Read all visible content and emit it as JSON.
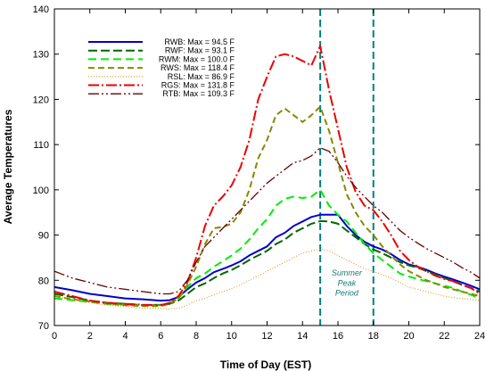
{
  "chart_data": {
    "type": "line",
    "xlabel": "Time of Day (EST)",
    "ylabel": "Average Temperatures",
    "xlim": [
      0,
      24
    ],
    "ylim": [
      70,
      140
    ],
    "xticks": [
      0,
      2,
      4,
      6,
      8,
      10,
      12,
      14,
      16,
      18,
      20,
      22,
      24
    ],
    "yticks": [
      70,
      80,
      90,
      100,
      110,
      120,
      130,
      140
    ],
    "grid": false,
    "legend_position": "top-left",
    "vlines": [
      15,
      18
    ],
    "vline_color": "#008080",
    "annotation": {
      "lines": [
        "Summer",
        "Peak",
        "Period"
      ],
      "x": 16.5,
      "y": [
        81,
        78.8,
        76.6
      ]
    },
    "series": [
      {
        "name": "RWB: Max = 94.5 F",
        "color": "#0000cc",
        "dash": "none",
        "width": 2,
        "x": [
          0,
          1,
          2,
          3,
          4,
          5,
          6,
          6.5,
          7,
          7.5,
          8,
          8.5,
          9,
          9.5,
          10,
          10.5,
          11,
          11.5,
          12,
          12.5,
          13,
          13.5,
          14,
          14.5,
          15,
          15.5,
          16,
          16.5,
          17,
          17.5,
          18,
          18.5,
          19,
          19.5,
          20,
          20.5,
          21,
          21.5,
          22,
          22.5,
          23,
          23.5,
          24
        ],
        "y": [
          78.5,
          77.8,
          77,
          76.5,
          76,
          75.8,
          75.5,
          75.6,
          76.3,
          78,
          79.5,
          80.5,
          81.8,
          82.5,
          83.3,
          84.2,
          85.5,
          86.5,
          87.5,
          89.5,
          90.5,
          92,
          93,
          94,
          94.5,
          94.5,
          94.5,
          92,
          90,
          88.5,
          87.5,
          86.8,
          85.8,
          84.5,
          83.5,
          83,
          82.3,
          81.5,
          80.8,
          80.2,
          79.5,
          78.8,
          78
        ]
      },
      {
        "name": "RWF: Max = 93.1 F",
        "color": "#006600",
        "dash": "10,4",
        "width": 2,
        "x": [
          0,
          1,
          2,
          3,
          4,
          5,
          6,
          6.5,
          7,
          7.5,
          8,
          8.5,
          9,
          9.5,
          10,
          10.5,
          11,
          11.5,
          12,
          12.5,
          13,
          13.5,
          14,
          14.5,
          15,
          15.5,
          16,
          16.5,
          17,
          17.5,
          18,
          18.5,
          19,
          19.5,
          20,
          20.5,
          21,
          21.5,
          22,
          22.5,
          23,
          23.5,
          24
        ],
        "y": [
          77,
          76.3,
          75.5,
          75,
          74.8,
          74.5,
          74.6,
          74.8,
          75.5,
          77,
          78.5,
          79.3,
          80.5,
          81.5,
          82.3,
          83.3,
          84.5,
          85.5,
          86.5,
          88,
          89,
          90.5,
          91.5,
          92.5,
          93.1,
          93,
          92.5,
          91,
          89.5,
          88,
          86.8,
          86,
          85,
          84,
          83.3,
          82.8,
          82,
          81.3,
          80.5,
          79.8,
          79,
          78.3,
          77.5
        ]
      },
      {
        "name": "RWM: Max = 100.0 F",
        "color": "#00ee00",
        "dash": "9,5",
        "width": 2,
        "x": [
          0,
          1,
          2,
          3,
          4,
          5,
          6,
          6.5,
          7,
          7.5,
          8,
          8.5,
          9,
          9.5,
          10,
          10.5,
          11,
          11.5,
          12,
          12.5,
          13,
          13.5,
          14,
          14.5,
          15,
          15.5,
          16,
          16.5,
          17,
          17.5,
          18,
          18.5,
          19,
          19.5,
          20,
          20.5,
          21,
          21.5,
          22,
          22.5,
          23,
          23.5,
          24
        ],
        "y": [
          76,
          75.6,
          75.2,
          74.8,
          74.6,
          74.4,
          74.5,
          75,
          76,
          78.5,
          80.5,
          81.5,
          83,
          84.2,
          85.5,
          87,
          89,
          91.5,
          93.5,
          96.5,
          98,
          98.5,
          98.2,
          98.5,
          100,
          96.5,
          94.5,
          93,
          90.5,
          88,
          86,
          84.5,
          83,
          81.5,
          80.8,
          80.3,
          79.8,
          79.3,
          78.8,
          78.3,
          77.5,
          76.8,
          76
        ]
      },
      {
        "name": "RWS: Max = 118.4 F",
        "color": "#888800",
        "dash": "7,4",
        "width": 2,
        "x": [
          0,
          1,
          2,
          3,
          4,
          5,
          6,
          6.5,
          7,
          7.5,
          8,
          8.5,
          9,
          9.5,
          10,
          10.5,
          11,
          11.5,
          12,
          12.5,
          13,
          13.5,
          14,
          14.5,
          15,
          15.5,
          16,
          16.5,
          17,
          17.5,
          18,
          18.5,
          19,
          19.5,
          20,
          20.5,
          21,
          21.5,
          22,
          22.5,
          23,
          23.5,
          24
        ],
        "y": [
          76.5,
          75.8,
          75.3,
          74.8,
          74.5,
          74.3,
          74.3,
          74.8,
          76,
          79,
          83,
          88,
          91.5,
          91.8,
          92.5,
          95,
          100,
          107,
          111,
          116.5,
          118,
          116.5,
          115,
          116.5,
          118.4,
          113,
          106,
          99,
          95,
          92,
          90,
          87.5,
          85.5,
          83.5,
          82,
          81,
          80,
          79.3,
          78.5,
          78,
          77.5,
          77,
          76.5
        ]
      },
      {
        "name": "RSL: Max = 86.9 F",
        "color": "#ee8800",
        "dash": "1,2",
        "width": 1,
        "x": [
          0,
          1,
          2,
          3,
          4,
          5,
          6,
          6.5,
          7,
          7.5,
          8,
          8.5,
          9,
          9.5,
          10,
          10.5,
          11,
          11.5,
          12,
          12.5,
          13,
          13.5,
          14,
          14.5,
          15,
          15.5,
          16,
          16.5,
          17,
          17.5,
          18,
          18.5,
          19,
          19.5,
          20,
          20.5,
          21,
          21.5,
          22,
          22.5,
          23,
          23.5,
          24
        ],
        "y": [
          76.5,
          75.7,
          75,
          74.5,
          74.2,
          73.8,
          73.8,
          73.6,
          73.8,
          74.5,
          75.5,
          76,
          76.8,
          77.5,
          78.2,
          79,
          80,
          81,
          82,
          83,
          84,
          85,
          86,
          86.5,
          86.9,
          86.5,
          85.5,
          84.5,
          83.5,
          82.5,
          82,
          81.2,
          80.5,
          79.5,
          78.5,
          78,
          77.5,
          77,
          76.5,
          76.2,
          76,
          75.8,
          75.5
        ]
      },
      {
        "name": "RGS: Max = 131.8 F",
        "color": "#ee0000",
        "dash": "12,3,2,3",
        "width": 2,
        "x": [
          0,
          1,
          2,
          3,
          4,
          5,
          6,
          6.5,
          7,
          7.5,
          8,
          8.5,
          9,
          9.5,
          10,
          10.5,
          11,
          11.5,
          12,
          12.5,
          13,
          13.5,
          14,
          14.5,
          15,
          15.5,
          16,
          16.5,
          17,
          17.5,
          18,
          18.5,
          19,
          19.5,
          20,
          20.5,
          21,
          21.5,
          22,
          22.5,
          23,
          23.5,
          24
        ],
        "y": [
          77.5,
          76.5,
          75.5,
          75,
          74.8,
          74.6,
          74.5,
          75,
          76.5,
          79.5,
          85,
          92,
          96.5,
          98.5,
          101,
          105,
          111,
          120,
          125,
          129.5,
          130,
          129.5,
          128.5,
          127.5,
          131.8,
          122,
          113.5,
          105,
          99.5,
          96.5,
          95.5,
          93,
          90,
          86.5,
          84.5,
          83,
          82,
          81,
          80.3,
          79.8,
          79,
          78.3,
          77
        ]
      },
      {
        "name": "RTB: Max = 109.3 F",
        "color": "#660000",
        "dash": "12,3,2,3,2,3",
        "width": 1.3,
        "x": [
          0,
          1,
          2,
          3,
          4,
          5,
          6,
          6.5,
          7,
          7.5,
          8,
          8.5,
          9,
          9.5,
          10,
          10.5,
          11,
          11.5,
          12,
          12.5,
          13,
          13.5,
          14,
          14.5,
          15,
          15.5,
          16,
          16.5,
          17,
          17.5,
          18,
          18.5,
          19,
          19.5,
          20,
          20.5,
          21,
          21.5,
          22,
          22.5,
          23,
          23.5,
          24
        ],
        "y": [
          82,
          80.5,
          79.5,
          78.5,
          78,
          77.5,
          77,
          77,
          77.5,
          80,
          84,
          87.5,
          89.5,
          91.5,
          93.5,
          95.5,
          97.5,
          99.5,
          101.5,
          103,
          104.5,
          106,
          106.5,
          107.5,
          109.3,
          108.5,
          106,
          103,
          100.5,
          98.5,
          96.5,
          95,
          93,
          91,
          89.5,
          88.2,
          87,
          86,
          85,
          84,
          82.8,
          81.8,
          80.5
        ]
      }
    ]
  }
}
